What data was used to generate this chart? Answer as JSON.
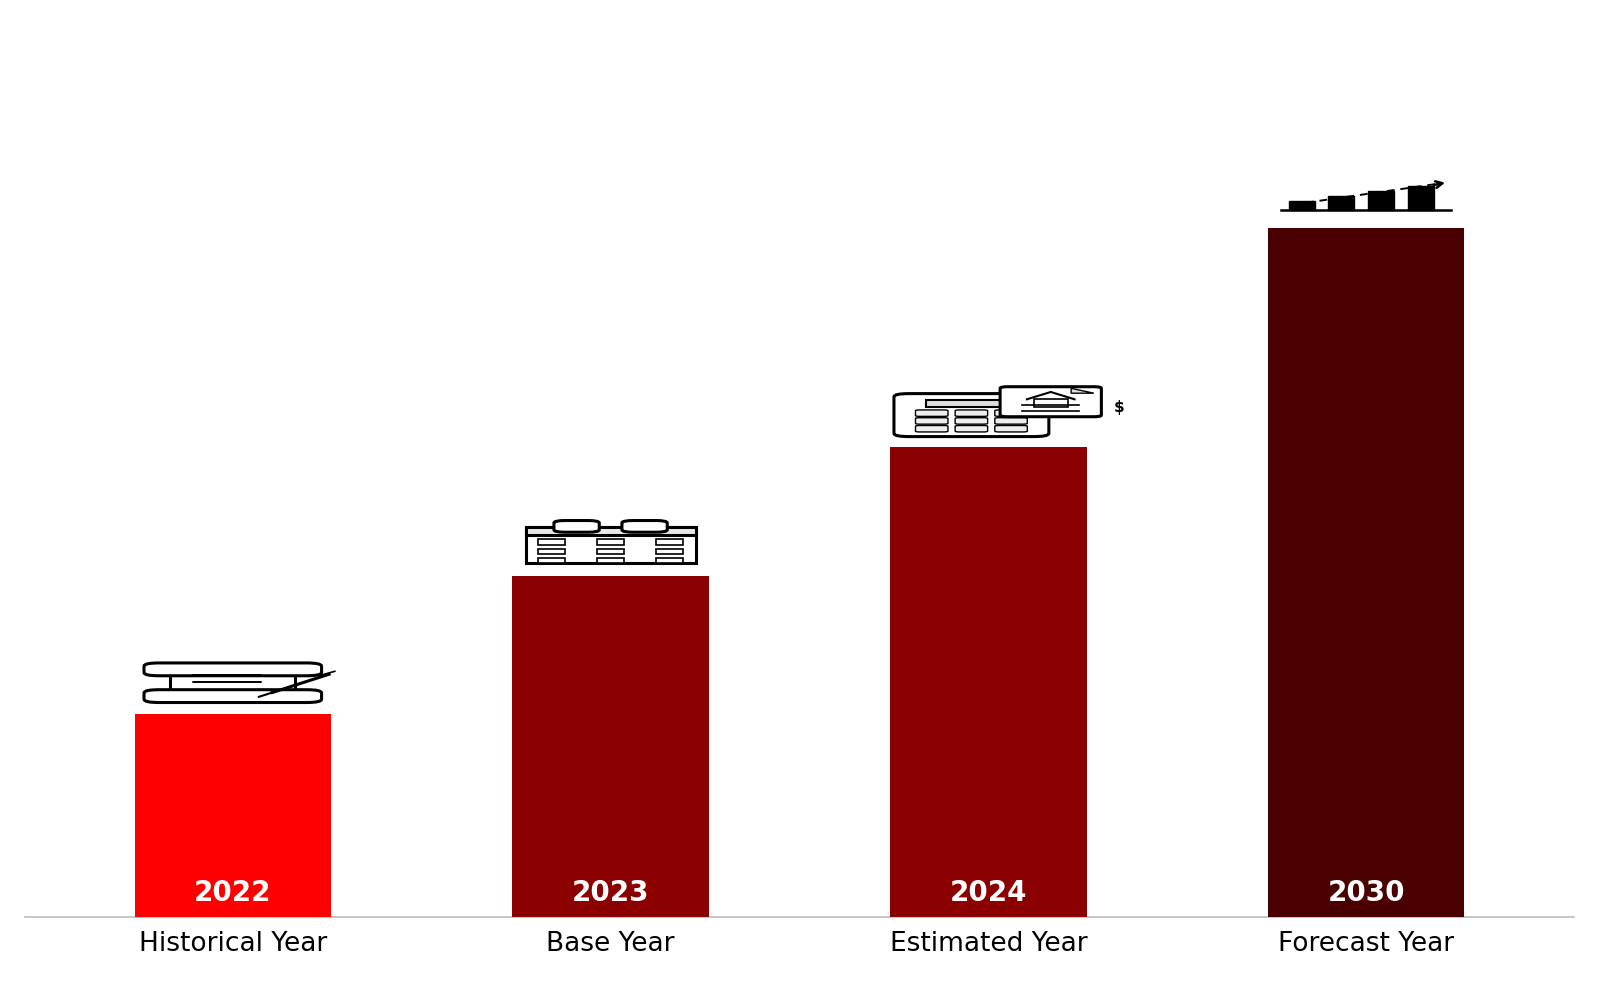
{
  "categories": [
    "Historical Year",
    "Base Year",
    "Estimated Year",
    "Forecast Year"
  ],
  "year_labels": [
    "2022",
    "2023",
    "2024",
    "2030"
  ],
  "values": [
    2.5,
    4.2,
    5.8,
    8.5
  ],
  "bar_colors": [
    "#FF0000",
    "#8B0000",
    "#8B0000",
    "#4A0000"
  ],
  "bar_width": 0.52,
  "background_color": "#FFFFFF",
  "year_label_color": "#FFFFFF",
  "year_label_fontsize": 20,
  "xlabel_fontsize": 19,
  "ylim": [
    0,
    11.0
  ],
  "xlim_left": -0.55,
  "xlim_right": 3.55
}
